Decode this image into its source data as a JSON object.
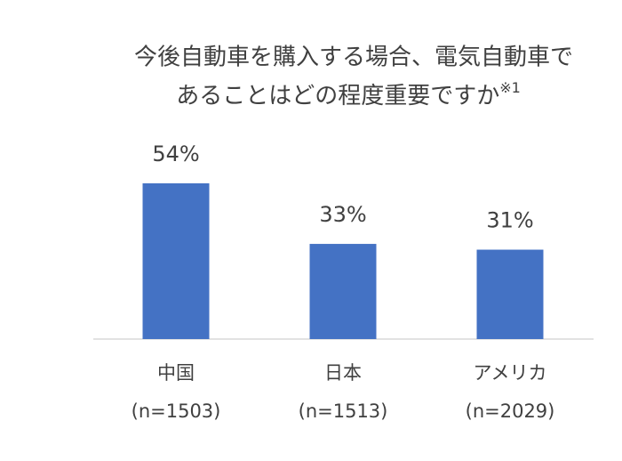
{
  "chart_data": {
    "type": "bar",
    "title": [
      "今後自動車を購入する場合、電気自動車で",
      "あることはどの程度重要ですか"
    ],
    "title_note": "※1",
    "categories": [
      "中国",
      "日本",
      "アメリカ"
    ],
    "sample_sizes": [
      "(n=1503)",
      "(n=1513)",
      "(n=2029)"
    ],
    "values": [
      54,
      33,
      31
    ],
    "value_labels": [
      "54%",
      "33%",
      "31%"
    ],
    "color": "#4472c4"
  }
}
